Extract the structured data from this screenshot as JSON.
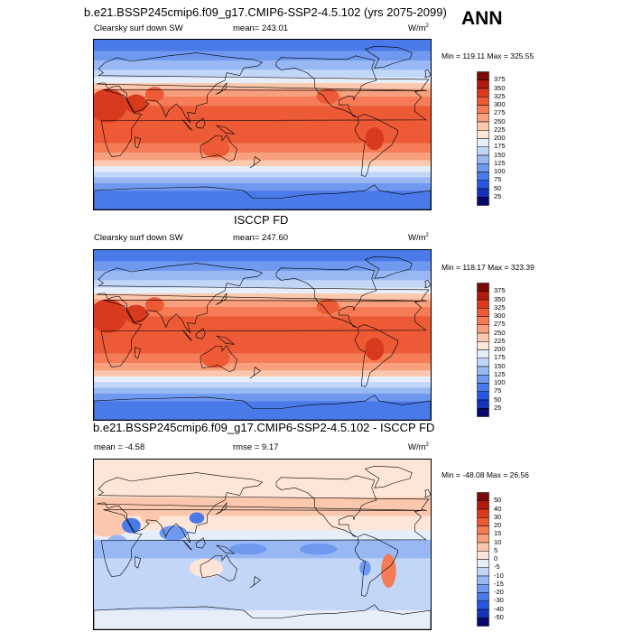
{
  "header": {
    "title": "b.e21.BSSP245cmip6.f09_g17.CMIP6-SSP2-4.5.102 (yrs 2075-2099)",
    "season": "ANN"
  },
  "panels": [
    {
      "variable": "Clearsky surf down SW",
      "mean_label": "mean= 243.01",
      "units_base": "W/m",
      "units_exp": "2",
      "minmax": "Min = 119.11 Max = 325.55"
    },
    {
      "title": "ISCCP FD",
      "variable": "Clearsky surf down SW",
      "mean_label": "mean= 247.60",
      "units_base": "W/m",
      "units_exp": "2",
      "minmax": "Min = 118.17 Max = 323.39"
    },
    {
      "title": "b.e21.BSSP245cmip6.f09_g17.CMIP6-SSP2-4.5.102 - ISCCP FD",
      "mean_label": "mean =  -4.58",
      "rmse_label": "rmse =   9.17",
      "units_base": "W/m",
      "units_exp": "2",
      "minmax": "Min = -48.08 Max =  26.56"
    }
  ],
  "chart_data": [
    {
      "type": "heatmap",
      "title": "b.e21.BSSP245cmip6.f09_g17.CMIP6-SSP2-4.5.102 (yrs 2075-2099)",
      "subtitle": "Clearsky surf down SW",
      "mean": 243.01,
      "min": 119.11,
      "max": 325.55,
      "units": "W/m2",
      "xlim": [
        0,
        360
      ],
      "ylim": [
        -90,
        90
      ],
      "colorbar_levels": [
        "25",
        "50",
        "75",
        "100",
        "125",
        "150",
        "175",
        "200",
        "225",
        "250",
        "275",
        "300",
        "325",
        "350",
        "375"
      ],
      "colorbar_colors": [
        "#08086b",
        "#1633b8",
        "#2956e0",
        "#4a7ae8",
        "#6f98ef",
        "#98b8f4",
        "#c2d6f8",
        "#e6eefa",
        "#fde6d8",
        "#fbc7ad",
        "#f8a07e",
        "#f57c56",
        "#ec5a36",
        "#d83a1d",
        "#b01b0f",
        "#7a0a08"
      ]
    },
    {
      "type": "heatmap",
      "title": "ISCCP FD",
      "subtitle": "Clearsky surf down SW",
      "mean": 247.6,
      "min": 118.17,
      "max": 323.39,
      "units": "W/m2",
      "xlim": [
        0,
        360
      ],
      "ylim": [
        -90,
        90
      ],
      "colorbar_levels": [
        "25",
        "50",
        "75",
        "100",
        "125",
        "150",
        "175",
        "200",
        "225",
        "250",
        "275",
        "300",
        "325",
        "350",
        "375"
      ],
      "colorbar_colors": [
        "#08086b",
        "#1633b8",
        "#2956e0",
        "#4a7ae8",
        "#6f98ef",
        "#98b8f4",
        "#c2d6f8",
        "#e6eefa",
        "#fde6d8",
        "#fbc7ad",
        "#f8a07e",
        "#f57c56",
        "#ec5a36",
        "#d83a1d",
        "#b01b0f",
        "#7a0a08"
      ]
    },
    {
      "type": "heatmap",
      "title": "b.e21.BSSP245cmip6.f09_g17.CMIP6-SSP2-4.5.102 - ISCCP FD",
      "mean": -4.58,
      "rmse": 9.17,
      "min": -48.08,
      "max": 26.56,
      "units": "W/m2",
      "xlim": [
        0,
        360
      ],
      "ylim": [
        -90,
        90
      ],
      "colorbar_levels": [
        "-50",
        "-40",
        "-30",
        "-20",
        "-15",
        "-10",
        "-5",
        "0",
        "5",
        "10",
        "15",
        "20",
        "30",
        "40",
        "50"
      ],
      "colorbar_colors": [
        "#08086b",
        "#1633b8",
        "#2956e0",
        "#4a7ae8",
        "#6f98ef",
        "#98b8f4",
        "#c2d6f8",
        "#e6eefa",
        "#fde6d8",
        "#fbc7ad",
        "#f8a07e",
        "#f57c56",
        "#ec5a36",
        "#d83a1d",
        "#b01b0f",
        "#7a0a08"
      ]
    }
  ]
}
